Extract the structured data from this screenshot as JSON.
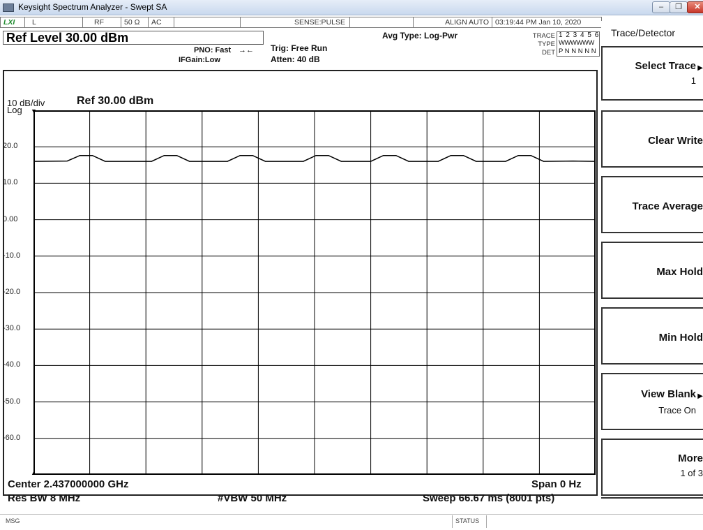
{
  "window": {
    "title": "Keysight Spectrum Analyzer - Swept SA",
    "min_glyph": "–",
    "max_glyph": "❐",
    "close_glyph": "✕"
  },
  "status_strip": {
    "logo": "LXI",
    "input": "L",
    "rf": "RF",
    "impedance": "50 Ω",
    "coupling": "AC",
    "sense": "SENSE:PULSE",
    "align": "ALIGN AUTO",
    "datetime": "03:19:44 PM Jan 10, 2020"
  },
  "header": {
    "ref_level": "Ref Level 30.00 dBm",
    "pno": "PNO: Fast",
    "ifgain": "IFGain:Low",
    "trig": "Trig: Free Run",
    "atten": "Atten: 40 dB",
    "avg_type": "Avg Type: Log-Pwr",
    "trace_label": "TRACE",
    "type_label": "TYPE",
    "det_label": "DET",
    "trace_numbers": "1 2 3 4 5 6",
    "trace_types": "WWWWWW",
    "trace_dets": "P N N N N N"
  },
  "graph": {
    "scale": "10 dB/div",
    "ref": "Ref 30.00 dBm",
    "log": "Log",
    "y_labels": [
      "20.0",
      "10.0",
      "0.00",
      "-10.0",
      "-20.0",
      "-30.0",
      "-40.0",
      "-50.0",
      "-60.0"
    ],
    "trace_color": "#000000",
    "grid_color": "#000000"
  },
  "chart_data": {
    "type": "line",
    "ylim": [
      -70,
      30
    ],
    "xlim": [
      0,
      66.67
    ],
    "x_unit": "ms",
    "y_unit": "dBm",
    "grid": true,
    "series": [
      {
        "name": "Trace 1",
        "x": [
          0,
          4,
          5.5,
          7,
          8.5,
          14,
          15.5,
          17,
          18.5,
          23,
          24.5,
          26,
          27.5,
          32,
          33.5,
          35,
          36.5,
          40,
          41.5,
          43,
          44.5,
          48,
          49.5,
          51,
          52.5,
          56,
          57.5,
          59,
          60.5,
          64,
          66.67
        ],
        "y": [
          16.0,
          16.1,
          17.6,
          17.6,
          16.0,
          16.0,
          17.6,
          17.6,
          16.0,
          16.0,
          17.6,
          17.6,
          16.0,
          16.0,
          17.6,
          17.6,
          16.0,
          16.0,
          17.6,
          17.6,
          16.0,
          16.0,
          17.6,
          17.6,
          16.0,
          16.0,
          17.6,
          17.6,
          16.0,
          16.1,
          16.0
        ]
      }
    ]
  },
  "footer": {
    "center": "Center 2.437000000 GHz",
    "span": "Span 0 Hz",
    "res_bw": "Res BW 8 MHz",
    "vbw": "#VBW 50 MHz",
    "sweep": "Sweep  66.67 ms (8001 pts)"
  },
  "softkeys": {
    "menu_title": "Trace/Detector",
    "select_trace": "Select Trace",
    "select_trace_value": "1",
    "clear_write": "Clear Write",
    "trace_average": "Trace Average",
    "max_hold": "Max Hold",
    "min_hold": "Min Hold",
    "view_blank": "View Blank",
    "view_blank_value": "Trace On",
    "more": "More",
    "more_value": "1 of 3"
  },
  "bottom": {
    "msg": "MSG",
    "status": "STATUS"
  }
}
